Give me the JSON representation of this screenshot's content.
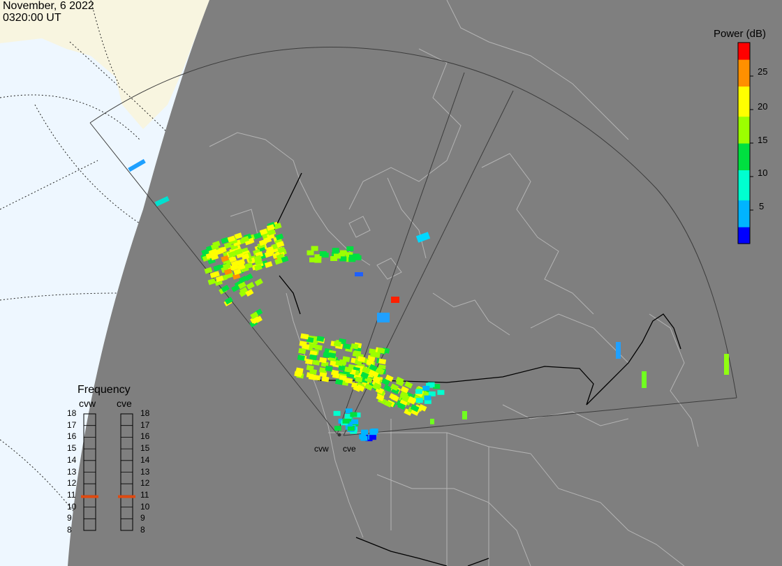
{
  "header": {
    "date": "November, 6 2022",
    "time": "0320:00 UT"
  },
  "colorbar": {
    "title": "Power (dB)",
    "ticks": [
      "25",
      "20",
      "15",
      "10",
      "5"
    ],
    "tick_values": [
      25,
      20,
      15,
      10,
      5
    ],
    "range": [
      0,
      30
    ],
    "colors": [
      "#0000ff",
      "#00b4ff",
      "#00ffd0",
      "#00e040",
      "#9cff00",
      "#ffff00",
      "#ff9000",
      "#ff0000"
    ]
  },
  "frequency": {
    "title": "Frequency",
    "radars": [
      "cvw",
      "cve"
    ],
    "scale": [
      "18",
      "17",
      "16",
      "15",
      "14",
      "13",
      "12",
      "11",
      "10",
      "9",
      "8"
    ],
    "current_mhz": {
      "cvw": 10.9,
      "cve": 10.9
    },
    "marker_color": "#e04a10"
  },
  "radar_sites": {
    "west": "cvw",
    "east": "cve"
  },
  "colors": {
    "night": "#7f7f7f",
    "day_land": "#f8f5e0",
    "day_ocean": "#eef7ff",
    "coastline": "#b4b4b4",
    "fov": "#3c3c3c"
  }
}
